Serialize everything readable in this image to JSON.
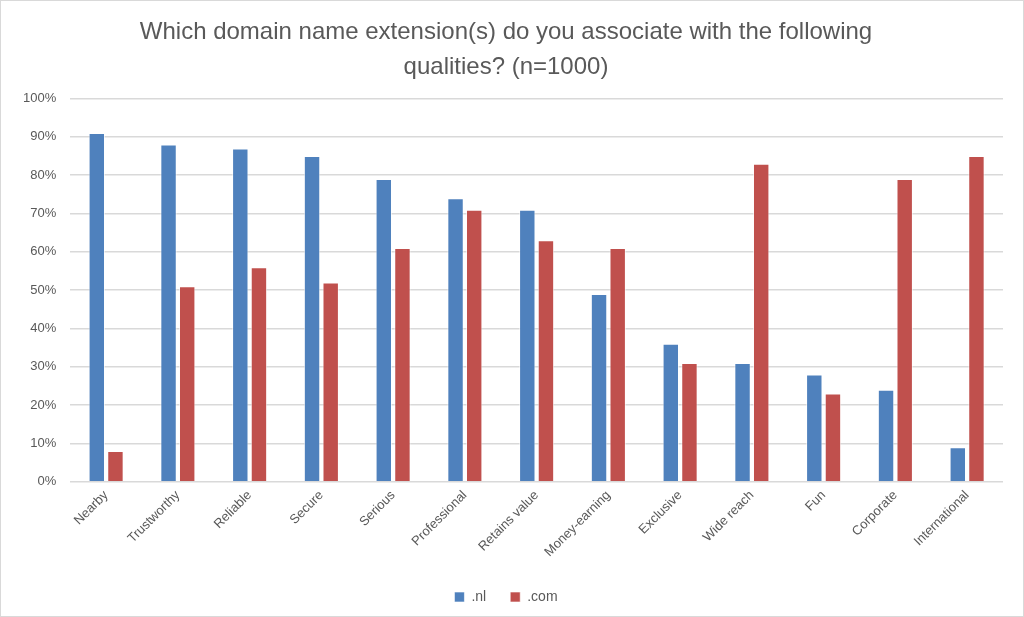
{
  "chart_data": {
    "type": "bar",
    "title": "Which domain name extension(s) do you associate with the following qualities? (n=1000)",
    "categories": [
      "Nearby",
      "Trustworthy",
      "Reliable",
      "Secure",
      "Serious",
      "Professional",
      "Retains value",
      "Money-earning",
      "Exclusive",
      "Wide reach",
      "Fun",
      "Corporate",
      "International"
    ],
    "series": [
      {
        "name": ".nl",
        "color": "#4f81bd",
        "values": [
          91,
          88,
          87,
          85,
          79,
          74,
          71,
          49,
          36,
          31,
          28,
          24,
          9
        ]
      },
      {
        "name": ".com",
        "color": "#c0504d",
        "values": [
          8,
          51,
          56,
          52,
          61,
          71,
          63,
          61,
          31,
          83,
          23,
          79,
          85
        ]
      }
    ],
    "ylim": [
      0,
      100
    ],
    "yticks": [
      {
        "value": 0,
        "label": "0%"
      },
      {
        "value": 10,
        "label": "10%"
      },
      {
        "value": 20,
        "label": "20%"
      },
      {
        "value": 30,
        "label": "30%"
      },
      {
        "value": 40,
        "label": "40%"
      },
      {
        "value": 50,
        "label": "50%"
      },
      {
        "value": 60,
        "label": "60%"
      },
      {
        "value": 70,
        "label": "70%"
      },
      {
        "value": 80,
        "label": "80%"
      },
      {
        "value": 90,
        "label": "90%"
      },
      {
        "value": 100,
        "label": "100%"
      }
    ],
    "grid": "y",
    "legend": "bottom"
  }
}
